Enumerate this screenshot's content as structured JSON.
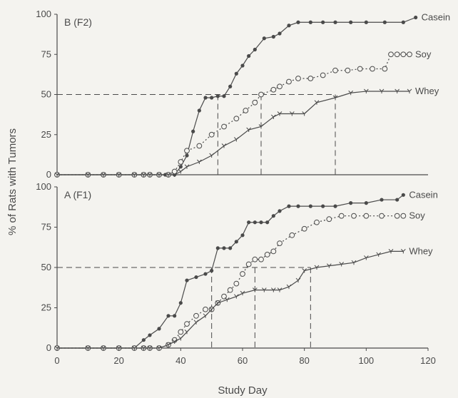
{
  "chart_data": [
    {
      "type": "line",
      "panel_label": "B (F2)",
      "xlim": [
        0,
        120
      ],
      "ylim": [
        0,
        100
      ],
      "yticks": [
        "0",
        "25",
        "50",
        "75",
        "100"
      ],
      "grid": false,
      "series": [
        {
          "name": "Casein",
          "marker": "filled-circle",
          "x": [
            0,
            10,
            15,
            20,
            25,
            28,
            30,
            33,
            35,
            38,
            40,
            42,
            44,
            46,
            48,
            50,
            52,
            54,
            56,
            58,
            60,
            62,
            64,
            67,
            70,
            72,
            75,
            78,
            82,
            86,
            90,
            95,
            100,
            106,
            112,
            116
          ],
          "y": [
            0,
            0,
            0,
            0,
            0,
            0,
            0,
            0,
            0,
            0,
            5,
            12,
            27,
            40,
            48,
            48,
            49,
            49,
            55,
            63,
            68,
            74,
            78,
            85,
            86,
            88,
            93,
            95,
            95,
            95,
            95,
            95,
            95,
            95,
            95,
            98
          ]
        },
        {
          "name": "Soy",
          "marker": "open-circle",
          "x": [
            0,
            10,
            15,
            20,
            25,
            28,
            30,
            33,
            36,
            38,
            40,
            42,
            46,
            50,
            54,
            58,
            61,
            64,
            66,
            70,
            72,
            75,
            78,
            82,
            86,
            90,
            94,
            98,
            102,
            106,
            108,
            110,
            112,
            114
          ],
          "y": [
            0,
            0,
            0,
            0,
            0,
            0,
            0,
            0,
            0,
            2,
            8,
            15,
            18,
            25,
            30,
            35,
            40,
            45,
            50,
            53,
            55,
            58,
            60,
            60,
            62,
            65,
            65,
            66,
            66,
            66,
            75,
            75,
            75,
            75
          ]
        },
        {
          "name": "Whey",
          "marker": "y-mark",
          "x": [
            0,
            10,
            15,
            20,
            25,
            28,
            30,
            33,
            36,
            38,
            40,
            42,
            46,
            50,
            54,
            58,
            62,
            66,
            70,
            72,
            76,
            80,
            84,
            90,
            95,
            100,
            105,
            110,
            114
          ],
          "y": [
            0,
            0,
            0,
            0,
            0,
            0,
            0,
            0,
            0,
            0,
            2,
            5,
            8,
            12,
            18,
            22,
            28,
            30,
            36,
            38,
            38,
            38,
            45,
            48,
            51,
            52,
            52,
            52,
            52
          ]
        }
      ],
      "reference_lines": [
        {
          "y": 50,
          "x": 52
        },
        {
          "y": 50,
          "x": 66
        },
        {
          "y": 50,
          "x": 90
        }
      ]
    },
    {
      "type": "line",
      "panel_label": "A (F1)",
      "xlim": [
        0,
        120
      ],
      "ylim": [
        0,
        100
      ],
      "xticks": [
        "0",
        "20",
        "40",
        "60",
        "80",
        "100",
        "120"
      ],
      "yticks": [
        "0",
        "25",
        "50",
        "75",
        "100"
      ],
      "xlabel": "Study Day",
      "ylabel": "% of Rats with Tumors",
      "grid": false,
      "series": [
        {
          "name": "Casein",
          "marker": "filled-circle",
          "x": [
            0,
            10,
            15,
            20,
            25,
            28,
            30,
            33,
            36,
            38,
            40,
            42,
            45,
            48,
            50,
            52,
            54,
            56,
            58,
            60,
            62,
            64,
            66,
            68,
            70,
            72,
            75,
            78,
            82,
            86,
            90,
            95,
            100,
            105,
            110,
            112
          ],
          "y": [
            0,
            0,
            0,
            0,
            0,
            5,
            8,
            12,
            20,
            20,
            28,
            42,
            44,
            46,
            48,
            62,
            62,
            62,
            66,
            70,
            78,
            78,
            78,
            78,
            82,
            85,
            88,
            88,
            88,
            88,
            88,
            90,
            90,
            92,
            92,
            95
          ]
        },
        {
          "name": "Soy",
          "marker": "open-circle",
          "x": [
            0,
            10,
            15,
            20,
            25,
            28,
            30,
            33,
            36,
            38,
            40,
            42,
            45,
            48,
            50,
            52,
            54,
            56,
            58,
            60,
            62,
            64,
            66,
            68,
            70,
            72,
            76,
            80,
            84,
            88,
            92,
            96,
            100,
            105,
            110,
            112
          ],
          "y": [
            0,
            0,
            0,
            0,
            0,
            0,
            0,
            0,
            2,
            5,
            10,
            15,
            20,
            24,
            24,
            28,
            32,
            36,
            40,
            46,
            52,
            55,
            55,
            58,
            60,
            65,
            70,
            74,
            78,
            80,
            82,
            82,
            82,
            82,
            82,
            82
          ]
        },
        {
          "name": "Whey",
          "marker": "y-mark",
          "x": [
            0,
            10,
            15,
            20,
            25,
            28,
            30,
            33,
            36,
            38,
            40,
            42,
            45,
            48,
            50,
            52,
            55,
            58,
            60,
            64,
            67,
            70,
            72,
            75,
            78,
            80,
            84,
            88,
            92,
            96,
            100,
            104,
            108,
            112
          ],
          "y": [
            0,
            0,
            0,
            0,
            0,
            0,
            0,
            0,
            2,
            4,
            6,
            10,
            16,
            20,
            24,
            28,
            30,
            32,
            34,
            36,
            36,
            36,
            36,
            38,
            42,
            48,
            50,
            51,
            52,
            53,
            56,
            58,
            60,
            60
          ]
        }
      ],
      "reference_lines": [
        {
          "y": 50,
          "x": 50
        },
        {
          "y": 50,
          "x": 64
        },
        {
          "y": 50,
          "x": 82
        }
      ]
    }
  ]
}
